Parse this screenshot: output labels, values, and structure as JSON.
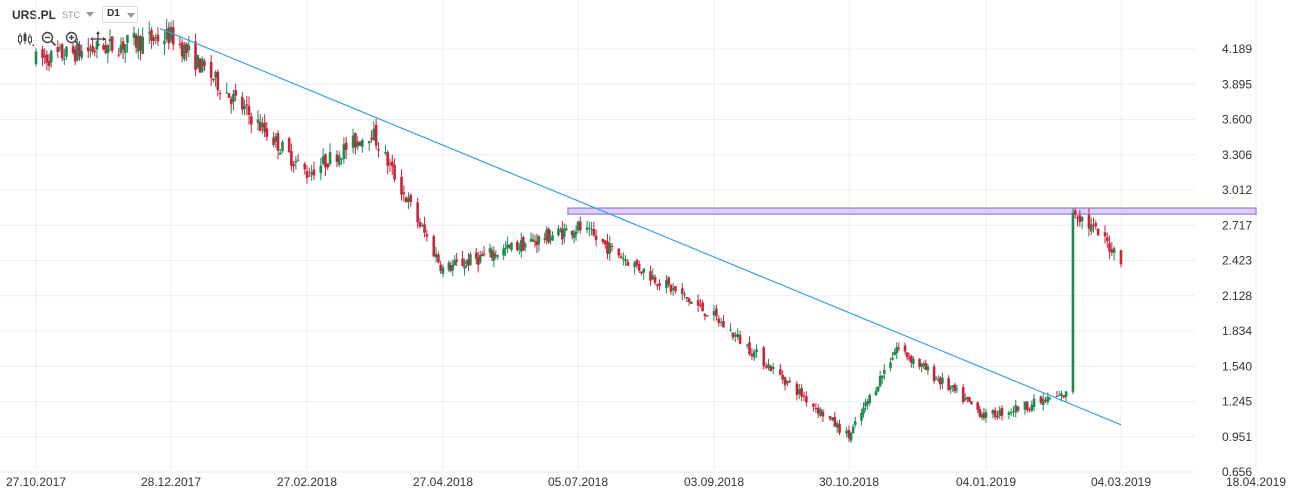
{
  "toolbar": {
    "symbol": "URS.PL",
    "exchange": "STC",
    "timeframe": "D1",
    "tools": [
      "candles-icon",
      "zoom-out-icon",
      "zoom-in-icon",
      "move-icon"
    ]
  },
  "colors": {
    "up": "#1e8a52",
    "down": "#c8243c",
    "trendline": "#3aa0e8",
    "zone_fill": "#dcd0f6",
    "zone_border": "#a98fe6",
    "grid": "#ececec",
    "axis_text": "#333333"
  },
  "chart_data": {
    "type": "candlestick",
    "title": "",
    "y_ticks": [
      "4.189",
      "3.895",
      "3.600",
      "3.306",
      "3.012",
      "2.717",
      "2.423",
      "2.128",
      "1.834",
      "1.540",
      "1.245",
      "0.951",
      "0.656"
    ],
    "x_ticks": [
      "27.10.2017",
      "28.12.2017",
      "27.02.2018",
      "27.04.2018",
      "05.07.2018",
      "03.09.2018",
      "30.10.2018",
      "04.01.2019",
      "04.03.2019",
      "18.04.2019"
    ],
    "ylim": [
      0.656,
      4.189
    ],
    "grid": true,
    "approx_closes": [
      [
        "27.10.2017",
        4.1
      ],
      [
        "28.12.2017",
        4.3
      ],
      [
        "27.02.2018",
        3.15
      ],
      [
        "27.03.2018",
        3.5
      ],
      [
        "27.04.2018",
        2.35
      ],
      [
        "05.07.2018",
        2.7
      ],
      [
        "03.09.2018",
        1.95
      ],
      [
        "30.10.2018",
        0.95
      ],
      [
        "22.11.2018",
        1.7
      ],
      [
        "04.01.2019",
        1.12
      ],
      [
        "08.02.2019",
        1.3
      ],
      [
        "11.02.2019",
        2.85
      ],
      [
        "04.03.2019",
        2.45
      ]
    ],
    "trendline": {
      "from": [
        "23.12.2017",
        4.36
      ],
      "to": [
        "04.03.2019",
        1.05
      ]
    },
    "resistance_zone": {
      "from": "05.07.2018",
      "to": "18.04.2019",
      "low": 2.81,
      "high": 2.86
    }
  }
}
